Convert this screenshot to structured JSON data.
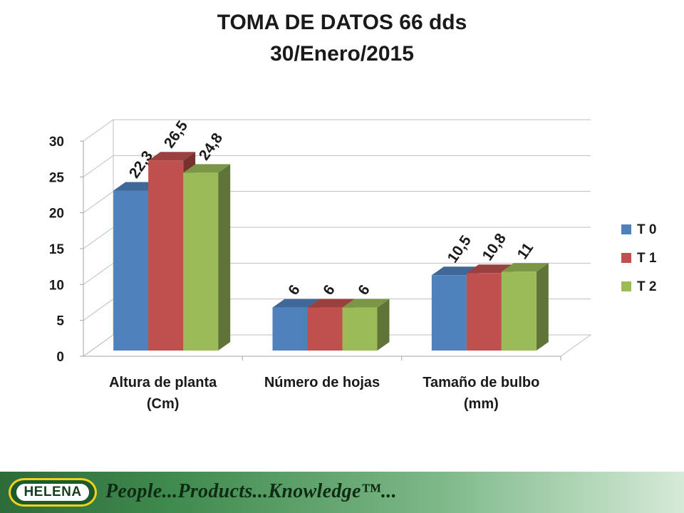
{
  "chart_data": {
    "type": "bar",
    "title": "TOMA DE DATOS 66 dds",
    "subtitle": "30/Enero/2015",
    "categories": [
      [
        "Altura de planta",
        "(Cm)"
      ],
      [
        "Número de hojas"
      ],
      [
        "Tamaño de bulbo",
        "(mm)"
      ]
    ],
    "series": [
      {
        "name": "T 0",
        "color": "#4f81bd",
        "values": [
          22.3,
          6,
          10.5
        ],
        "labels": [
          "22,3",
          "6",
          "10,5"
        ]
      },
      {
        "name": "T 1",
        "color": "#c0504d",
        "values": [
          26.5,
          6,
          10.8
        ],
        "labels": [
          "26,5",
          "6",
          "10,8"
        ]
      },
      {
        "name": "T 2",
        "color": "#9bbb59",
        "values": [
          24.8,
          6,
          11
        ],
        "labels": [
          "24,8",
          "6",
          "11"
        ]
      }
    ],
    "ylim": [
      0,
      30
    ],
    "yticks": [
      0,
      5,
      10,
      15,
      20,
      25,
      30
    ],
    "grid": true,
    "legend": "right",
    "three_d": true
  },
  "footer": {
    "logo_text": "HELENA",
    "slogan": "People...Products...Knowledge™..."
  }
}
